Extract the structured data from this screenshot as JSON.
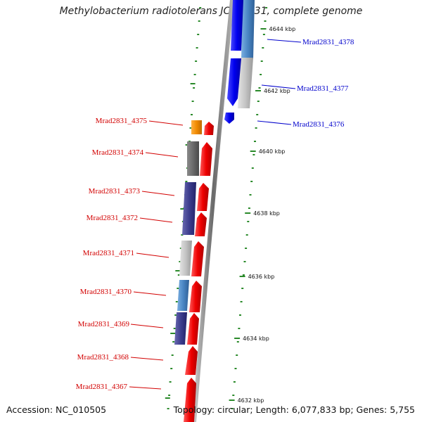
{
  "header": {
    "title": "Methylobacterium radiotolerans JCM 2831, complete genome"
  },
  "footer": {
    "accession": "Accession: NC_010505",
    "topology": "Topology: circular; Length: 6,077,833 bp; Genes: 5,755"
  },
  "colors": {
    "forward_strand": "#0000ee",
    "reverse_strand": "#ee0000",
    "tick": "#2a8a2a",
    "backbone": "#888888"
  },
  "kbp_ticks": [
    {
      "label": "4644 kbp"
    },
    {
      "label": "4642 kbp"
    },
    {
      "label": "4640 kbp"
    },
    {
      "label": "4638 kbp"
    },
    {
      "label": "4636 kbp"
    },
    {
      "label": "4634 kbp"
    },
    {
      "label": "4632 kbp"
    }
  ],
  "genes_reverse": [
    {
      "name": "Mrad2831_4375"
    },
    {
      "name": "Mrad2831_4374"
    },
    {
      "name": "Mrad2831_4373"
    },
    {
      "name": "Mrad2831_4372"
    },
    {
      "name": "Mrad2831_4371"
    },
    {
      "name": "Mrad2831_4370"
    },
    {
      "name": "Mrad2831_4369"
    },
    {
      "name": "Mrad2831_4368"
    },
    {
      "name": "Mrad2831_4367"
    }
  ],
  "genes_forward": [
    {
      "name": "Mrad2831_4378"
    },
    {
      "name": "Mrad2831_4377"
    },
    {
      "name": "Mrad2831_4376"
    }
  ]
}
